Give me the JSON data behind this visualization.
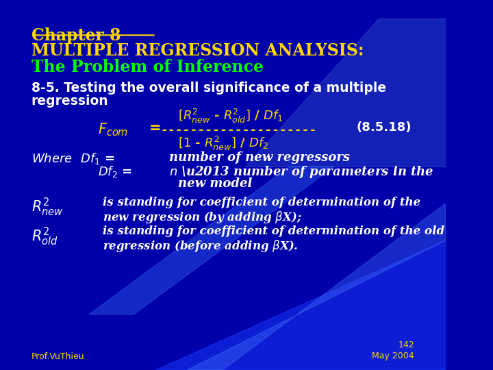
{
  "bg_color": "#0000aa",
  "title_line1": "Chapter 8",
  "title_line2": "MULTIPLE REGRESSION ANALYSIS:",
  "title_line3": "The Problem of Inference",
  "title_line1_color": "#ffd700",
  "title_line2_color": "#ffd700",
  "title_line3_color": "#00ff00",
  "section_heading": "8-5. Testing the overall significance of a multiple\nregression",
  "section_heading_color": "#ffffff",
  "formula_color": "#ffd700",
  "where_color": "#ffffff",
  "desc_color": "#ffffff",
  "footer_left": "Prof.VuThieu",
  "footer_right_line1": "142",
  "footer_right_line2": "May 2004",
  "footer_color": "#ffd700"
}
